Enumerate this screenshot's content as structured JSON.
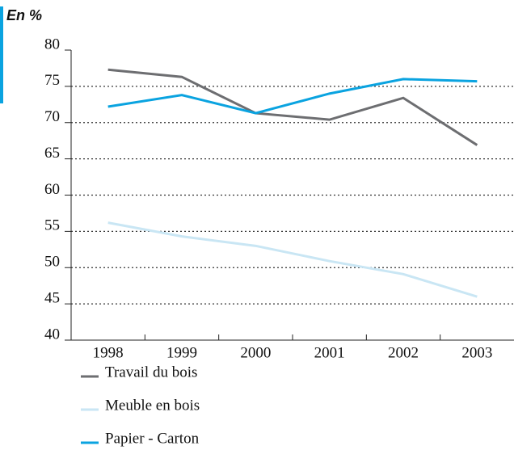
{
  "chart_data": {
    "type": "line",
    "title": "En %",
    "categories": [
      "1998",
      "1999",
      "2000",
      "2001",
      "2002",
      "2003"
    ],
    "series": [
      {
        "name": "Travail du bois",
        "color": "#6d6e71",
        "values": [
          77.3,
          76.3,
          71.3,
          70.4,
          73.4,
          66.9
        ]
      },
      {
        "name": "Meuble en bois",
        "color": "#c9e6f4",
        "values": [
          56.2,
          54.3,
          53.0,
          50.9,
          49.1,
          46.0
        ]
      },
      {
        "name": "Papier - Carton",
        "color": "#0aa3e0",
        "values": [
          72.2,
          73.8,
          71.3,
          74.0,
          76.0,
          75.7
        ]
      }
    ],
    "ylim": [
      40,
      80
    ],
    "yticks": [
      40,
      45,
      50,
      55,
      60,
      65,
      70,
      75,
      80
    ],
    "grid": true,
    "legend": "bottom"
  }
}
